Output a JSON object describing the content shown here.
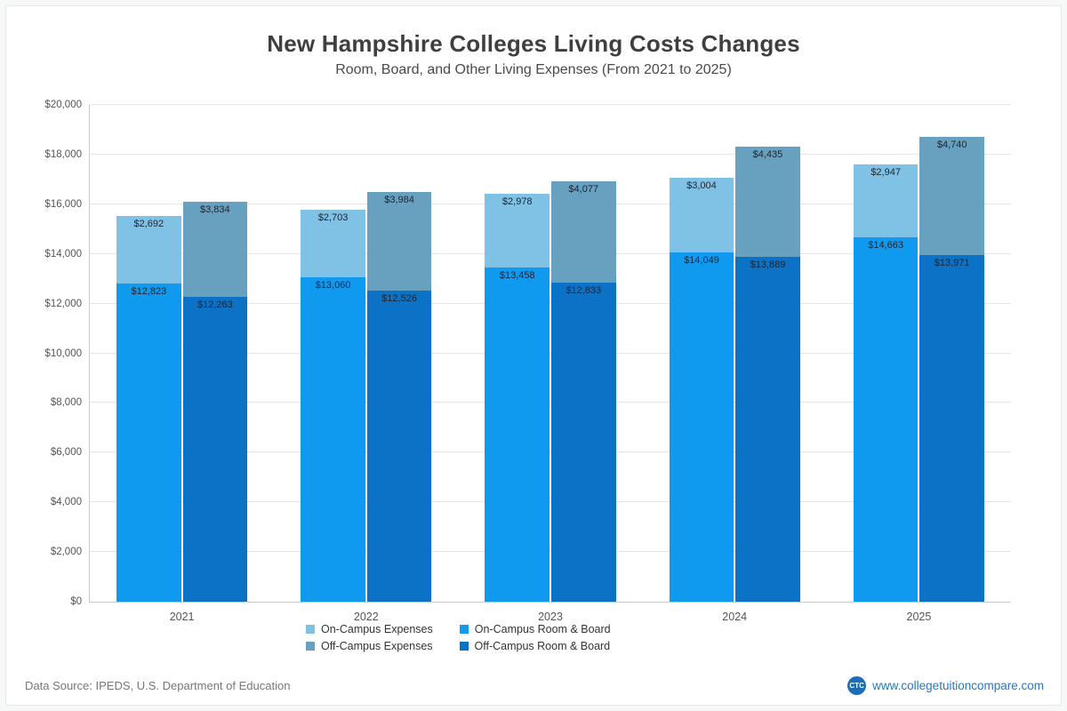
{
  "title": "New Hampshire Colleges  Living Costs Changes",
  "subtitle": "Room, Board, and Other Living Expenses (From 2021 to 2025)",
  "footer": {
    "source": "Data Source: IPEDS, U.S. Department of Education",
    "brand_abbr": "CTC",
    "site": "www.collegetuitioncompare.com"
  },
  "chart_data": {
    "type": "bar",
    "stacked": true,
    "grid": true,
    "legend_position": "bottom",
    "title": "New Hampshire Colleges  Living Costs Changes",
    "subtitle": "Room, Board, and Other Living Expenses (From 2021 to 2025)",
    "xlabel": "",
    "ylabel": "",
    "ylim": [
      0,
      20000
    ],
    "ytick_step": 2000,
    "ytick_prefix": "$",
    "categories": [
      "2021",
      "2022",
      "2023",
      "2024",
      "2025"
    ],
    "bars": [
      {
        "name": "on-campus",
        "segments": [
          {
            "name": "On-Campus Room & Board",
            "color": "#0f9af0",
            "values": [
              12823,
              13060,
              13458,
              14049,
              14663
            ]
          },
          {
            "name": "On-Campus Expenses",
            "color": "#7fc2e6",
            "values": [
              2692,
              2703,
              2978,
              3004,
              2947
            ]
          }
        ]
      },
      {
        "name": "off-campus",
        "segments": [
          {
            "name": "Off-Campus Room & Board",
            "color": "#0b72c6",
            "values": [
              12263,
              12526,
              12833,
              13889,
              13971
            ]
          },
          {
            "name": "Off-Campus Expenses",
            "color": "#68a0c0",
            "values": [
              3834,
              3984,
              4077,
              4435,
              4740
            ]
          }
        ]
      }
    ],
    "legend": [
      {
        "label": "On-Campus Expenses",
        "color": "#7fc2e6"
      },
      {
        "label": "On-Campus Room & Board",
        "color": "#0f9af0"
      },
      {
        "label": "Off-Campus Expenses",
        "color": "#68a0c0"
      },
      {
        "label": "Off-Campus Room & Board",
        "color": "#0b72c6"
      }
    ]
  }
}
